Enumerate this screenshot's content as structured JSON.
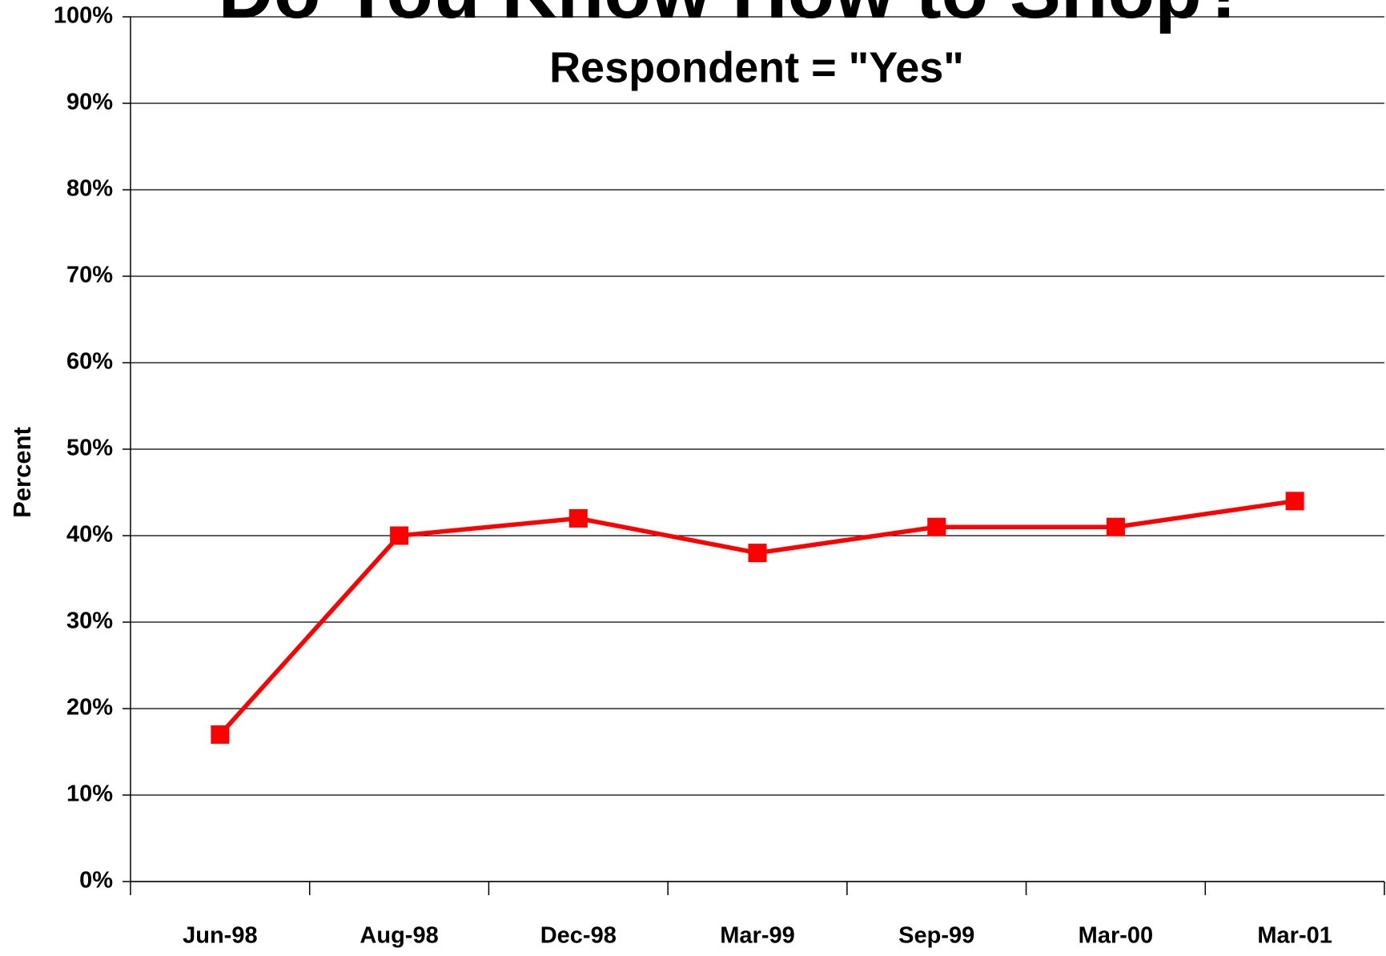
{
  "chart_data": {
    "type": "line",
    "title": "Do You Know How to Shop?",
    "subtitle": "Respondent =  \"Yes\"",
    "y_label": "Percent",
    "categories": [
      "Jun-98",
      "Aug-98",
      "Dec-98",
      "Mar-99",
      "Sep-99",
      "Mar-00",
      "Mar-01"
    ],
    "series": [
      {
        "name": "Yes",
        "color": "#ff0000",
        "values": [
          17,
          40,
          42,
          38,
          41,
          41,
          44
        ]
      }
    ],
    "ylim": [
      0,
      100
    ],
    "yticks": [
      {
        "value": 0,
        "label": "0%"
      },
      {
        "value": 10,
        "label": "10%"
      },
      {
        "value": 20,
        "label": "20%"
      },
      {
        "value": 30,
        "label": "30%"
      },
      {
        "value": 40,
        "label": "40%"
      },
      {
        "value": 50,
        "label": "50%"
      },
      {
        "value": 60,
        "label": "60%"
      },
      {
        "value": 70,
        "label": "70%"
      },
      {
        "value": 80,
        "label": "80%"
      },
      {
        "value": 90,
        "label": "90%"
      },
      {
        "value": 100,
        "label": "100%"
      }
    ],
    "grid": true
  }
}
